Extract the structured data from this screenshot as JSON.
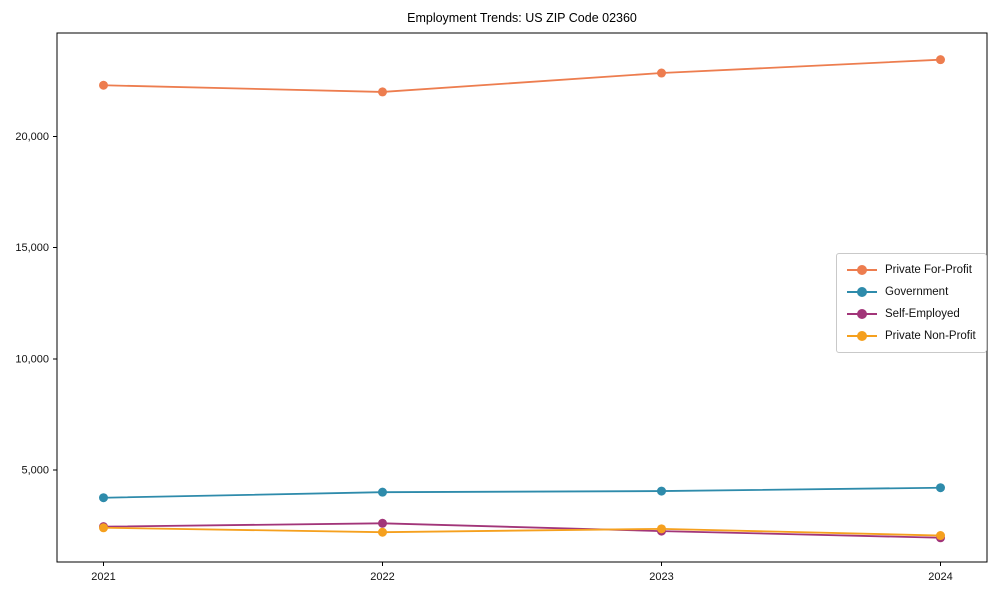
{
  "chart_data": {
    "type": "line",
    "title": "Employment Trends: US ZIP Code 02360",
    "xlabel": "",
    "ylabel": "",
    "categories": [
      "2021",
      "2022",
      "2023",
      "2024"
    ],
    "series": [
      {
        "name": "Private For-Profit",
        "color": "#ED7D4F",
        "values": [
          22300,
          22000,
          22850,
          23450
        ]
      },
      {
        "name": "Government",
        "color": "#2E8BAB",
        "values": [
          3750,
          4000,
          4050,
          4200
        ]
      },
      {
        "name": "Self-Employed",
        "color": "#A23579",
        "values": [
          2450,
          2600,
          2250,
          1950
        ]
      },
      {
        "name": "Private Non-Profit",
        "color": "#F5A01E",
        "values": [
          2400,
          2200,
          2350,
          2050
        ]
      }
    ],
    "ylim": [
      860,
      24650
    ],
    "yticks": [
      5000,
      10000,
      15000,
      20000
    ],
    "ytick_labels": [
      "5,000",
      "10,000",
      "15,000",
      "20,000"
    ],
    "grid": false,
    "legend_position": "center-right",
    "marker": "circle"
  }
}
